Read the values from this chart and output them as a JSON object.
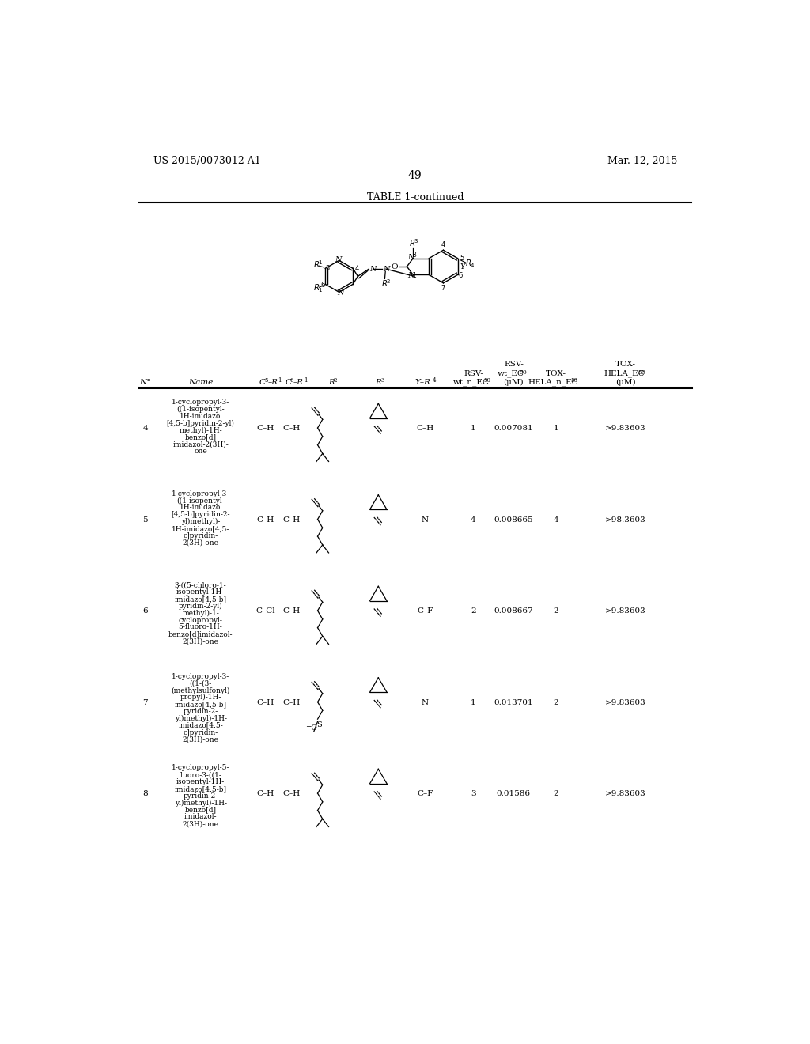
{
  "page_number": "49",
  "patent_number": "US 2015/0073012 A1",
  "patent_date": "Mar. 12, 2015",
  "table_title": "TABLE 1-continued",
  "rows": [
    {
      "N": "4",
      "Name": "1-cyclopropyl-3-\n((1-isopentyl-\n1H-imidazo\n[4,5-b]pyridin-2-yl)\nmethyl)-1H-\nbenzo[d]\nimidazol-2(3H)-\none",
      "C5R1": "C–H",
      "C6R1": "C–H",
      "YR4": "C–H",
      "RSV_wt_n": "1",
      "RSV_wt_EC50": "0.007081",
      "TOX_n": "1",
      "TOX_EC50": ">9.83603",
      "chain_type": "isopentyl"
    },
    {
      "N": "5",
      "Name": "1-cyclopropyl-3-\n((1-isopentyl-\n1H-imidazo\n[4,5-b]pyridin-2-\nyl)methyl)-\n1H-imidazo[4,5-\nc]pyridin-\n2(3H)-one",
      "C5R1": "C–H",
      "C6R1": "C–H",
      "YR4": "N",
      "RSV_wt_n": "4",
      "RSV_wt_EC50": "0.008665",
      "TOX_n": "4",
      "TOX_EC50": ">98.3603",
      "chain_type": "isopentyl"
    },
    {
      "N": "6",
      "Name": "3-((5-chloro-1-\nisopentyl-1H-\nimidazo[4,5-b]\npyridin-2-yl)\nmethyl)-1-\ncyclopropyl-\n5-fluoro-1H-\nbenzo[d]imidazol-\n2(3H)-one",
      "C5R1": "C–Cl",
      "C6R1": "C–H",
      "YR4": "C–F",
      "RSV_wt_n": "2",
      "RSV_wt_EC50": "0.008667",
      "TOX_n": "2",
      "TOX_EC50": ">9.83603",
      "chain_type": "isopentyl"
    },
    {
      "N": "7",
      "Name": "1-cyclopropyl-3-\n((1-(3-\n(methylsulfonyl)\npropyl)-1H-\nimidazo[4,5-b]\npyridin-2-\nyl)methyl)-1H-\nimidazo[4,5-\nc]pyridin-\n2(3H)-one",
      "C5R1": "C–H",
      "C6R1": "C–H",
      "YR4": "N",
      "RSV_wt_n": "1",
      "RSV_wt_EC50": "0.013701",
      "TOX_n": "2",
      "TOX_EC50": ">9.83603",
      "chain_type": "methylsulfonyl"
    },
    {
      "N": "8",
      "Name": "1-cyclopropyl-5-\nfluoro-3-((1-\nisopentyl-1H-\nimidazo[4,5-b]\npyridin-2-\nyl)methyl)-1H-\nbenzo[d]\nimidazol-\n2(3H)-one",
      "C5R1": "C–H",
      "C6R1": "C–H",
      "YR4": "C–F",
      "RSV_wt_n": "3",
      "RSV_wt_EC50": "0.01586",
      "TOX_n": "2",
      "TOX_EC50": ">9.83603",
      "chain_type": "isopentyl"
    }
  ],
  "background_color": "#ffffff"
}
